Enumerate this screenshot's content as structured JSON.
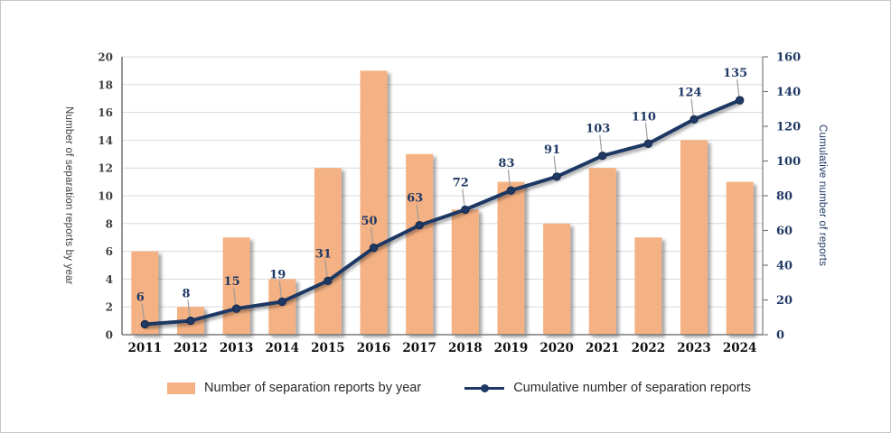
{
  "chart_data": {
    "type": "combo",
    "categories": [
      "2011",
      "2012",
      "2013",
      "2014",
      "2015",
      "2016",
      "2017",
      "2018",
      "2019",
      "2020",
      "2021",
      "2022",
      "2023",
      "2024"
    ],
    "series": [
      {
        "name": "Number of separation reports by year",
        "type": "bar",
        "axis": "left",
        "color": "#F4B183",
        "values": [
          6,
          2,
          7,
          4,
          12,
          19,
          13,
          9,
          11,
          8,
          12,
          7,
          14,
          11
        ]
      },
      {
        "name": "Cumulative number of separation reports",
        "type": "line",
        "axis": "right",
        "color": "#1F3864",
        "marker": "circle",
        "data_labels": [
          6,
          8,
          15,
          19,
          31,
          50,
          63,
          72,
          83,
          91,
          103,
          110,
          124,
          135
        ],
        "values": [
          6,
          8,
          15,
          19,
          31,
          50,
          63,
          72,
          83,
          91,
          103,
          110,
          124,
          135
        ]
      }
    ],
    "left_axis": {
      "title": "Number of separation reports by year",
      "min": 0,
      "max": 20,
      "tick_step": 2,
      "ticks": [
        0,
        2,
        4,
        6,
        8,
        10,
        12,
        14,
        16,
        18,
        20
      ]
    },
    "right_axis": {
      "title": "Cumulative number of reports",
      "min": 0,
      "max": 160,
      "tick_step": 20,
      "ticks": [
        0,
        20,
        40,
        60,
        80,
        100,
        120,
        140,
        160
      ]
    },
    "grid": true,
    "legend_position": "bottom",
    "colors": {
      "bar": "#F4B183",
      "line": "#1F3864",
      "navy_text": "#1F3864",
      "left_tick_text": "#3f3f3f",
      "year_text": "#101010",
      "grid": "#D9D9D9",
      "axis": "#7a7a7a",
      "leader": "#9e9e9e"
    }
  }
}
